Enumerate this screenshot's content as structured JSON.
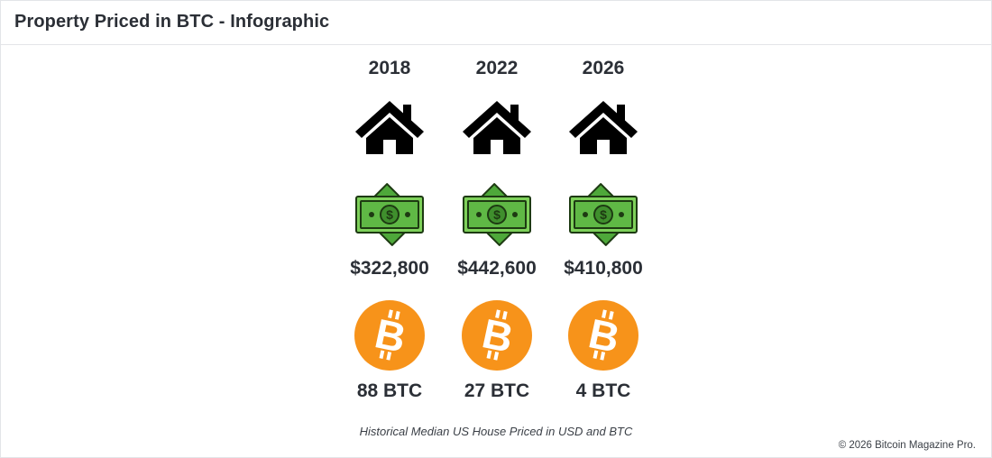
{
  "header": {
    "title": "Property Priced in BTC - Infographic"
  },
  "chart_data": {
    "type": "table",
    "title": "Property Priced in BTC - Infographic",
    "subtitle": "Historical Median US House Priced in USD and BTC",
    "columns": [
      {
        "year": "2018",
        "usd": "$322,800",
        "btc": "88 BTC",
        "usd_value": 322800,
        "btc_value": 88
      },
      {
        "year": "2022",
        "usd": "$442,600",
        "btc": "27 BTC",
        "usd_value": 442600,
        "btc_value": 27
      },
      {
        "year": "2026",
        "usd": "$410,800",
        "btc": "4 BTC",
        "usd_value": 410800,
        "btc_value": 4
      }
    ],
    "icons": [
      "house-icon",
      "dollar-bill-icon",
      "bitcoin-icon"
    ]
  },
  "caption": "Historical Median US House Priced in USD and BTC",
  "copyright": "© 2026 Bitcoin Magazine Pro.",
  "colors": {
    "bill_green": "#6cc04a",
    "bill_green_dark": "#2f6b1f",
    "bitcoin_orange": "#f7931a",
    "text": "#2b2f36"
  }
}
